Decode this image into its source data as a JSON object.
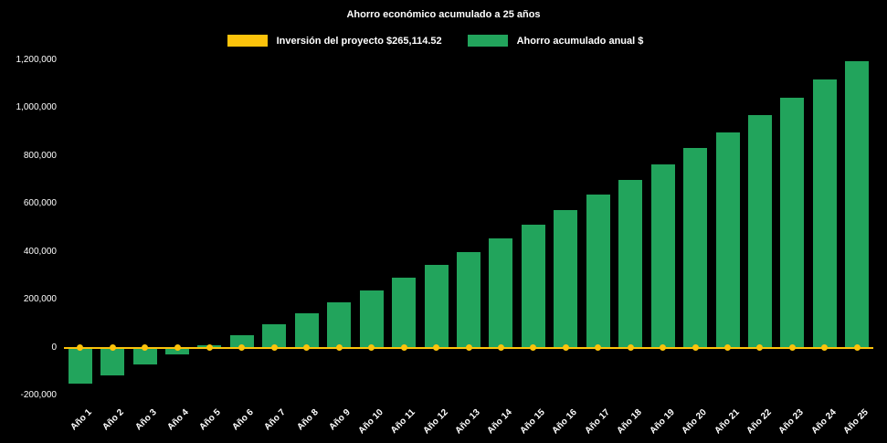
{
  "chart_data": {
    "type": "bar",
    "title": "Ahorro económico acumulado a 25 años",
    "background": "#000000",
    "text_color": "#ffffff",
    "grid": false,
    "legend_position": "top",
    "ylim": [
      -200000,
      1200000
    ],
    "ytick_step": 200000,
    "xlabel": "",
    "ylabel": "",
    "categories": [
      "Año 1",
      "Año 2",
      "Año 3",
      "Año 4",
      "Año 5",
      "Año 6",
      "Año 7",
      "Año 8",
      "Año 9",
      "Año 10",
      "Año 11",
      "Año 12",
      "Año 13",
      "Año 14",
      "Año 15",
      "Año 16",
      "Año 17",
      "Año 18",
      "Año 19",
      "Año 20",
      "Año 21",
      "Año 22",
      "Año 23",
      "Año 24",
      "Año 25"
    ],
    "series": [
      {
        "name": "Inversión del proyecto $265,114.52",
        "type": "line",
        "color": "#fcc30b",
        "values": [
          0,
          0,
          0,
          0,
          0,
          0,
          0,
          0,
          0,
          0,
          0,
          0,
          0,
          0,
          0,
          0,
          0,
          0,
          0,
          0,
          0,
          0,
          0,
          0,
          0
        ]
      },
      {
        "name": "Ahorro acumulado anual $",
        "type": "bar",
        "color": "#22a45c",
        "values": [
          -150000,
          -115000,
          -72000,
          -30000,
          8000,
          52000,
          97000,
          143000,
          190000,
          240000,
          293000,
          345000,
          400000,
          458000,
          515000,
          575000,
          638000,
          700000,
          765000,
          833000,
          900000,
          973000,
          1045000,
          1120000,
          1195000
        ]
      }
    ]
  }
}
